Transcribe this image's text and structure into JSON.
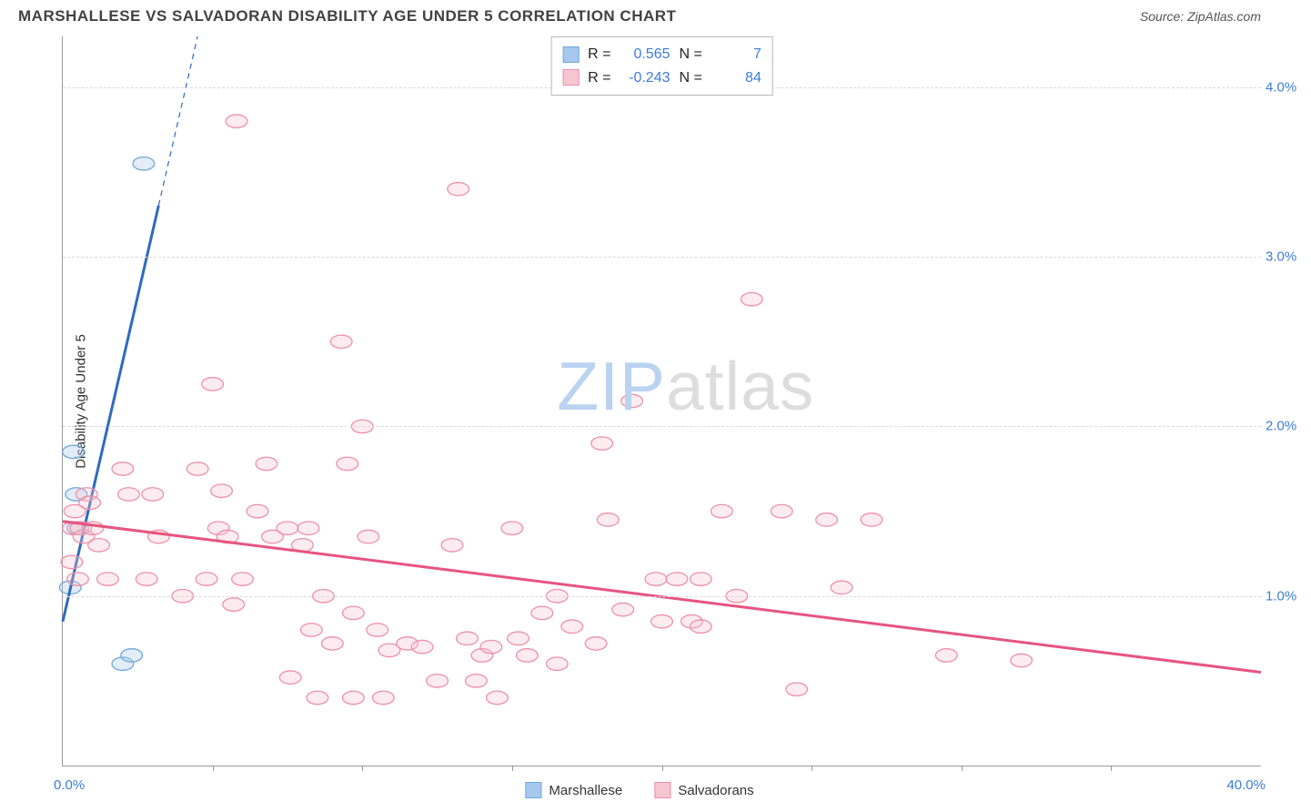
{
  "header": {
    "title": "MARSHALLESE VS SALVADORAN DISABILITY AGE UNDER 5 CORRELATION CHART",
    "source": "Source: ZipAtlas.com"
  },
  "y_axis_label": "Disability Age Under 5",
  "watermark": {
    "part1": "ZIP",
    "part2": "atlas"
  },
  "chart": {
    "type": "scatter",
    "background_color": "#ffffff",
    "grid_color": "#d8d8d8",
    "axis_color": "#999999",
    "tick_label_color": "#3b7dd8",
    "xlim": [
      0,
      40
    ],
    "ylim": [
      0,
      4.3
    ],
    "x_ticks_major": [
      0,
      40
    ],
    "x_tick_labels": [
      "0.0%",
      "40.0%"
    ],
    "x_ticks_minor": [
      5,
      10,
      15,
      20,
      25,
      30,
      35
    ],
    "y_gridlines": [
      1,
      2,
      3,
      4
    ],
    "y_tick_labels": [
      "1.0%",
      "2.0%",
      "3.0%",
      "4.0%"
    ],
    "marker_radius": 9,
    "marker_stroke_width": 1.3,
    "marker_fill_opacity": 0.32,
    "regression_line_width": 3,
    "series": [
      {
        "name": "Marshallese",
        "color_fill": "#a5c8ec",
        "color_stroke": "#6fa8dc",
        "line_color": "#2d6bbf",
        "legend_R": "0.565",
        "legend_N": "7",
        "points": [
          {
            "x": 0.25,
            "y": 1.05
          },
          {
            "x": 0.35,
            "y": 1.85
          },
          {
            "x": 0.45,
            "y": 1.6
          },
          {
            "x": 0.5,
            "y": 1.4
          },
          {
            "x": 2.0,
            "y": 0.6
          },
          {
            "x": 2.3,
            "y": 0.65
          },
          {
            "x": 2.7,
            "y": 3.55
          }
        ],
        "regression": {
          "x1": 0,
          "y1": 0.85,
          "x2": 4.5,
          "y2": 4.3,
          "dashed_from_x": 3.2
        }
      },
      {
        "name": "Salvadorans",
        "color_fill": "#f7c5d1",
        "color_stroke": "#ef8fa8",
        "line_color": "#e75480",
        "legend_R": "-0.243",
        "legend_N": "84",
        "points": [
          {
            "x": 0.3,
            "y": 1.2
          },
          {
            "x": 0.35,
            "y": 1.4
          },
          {
            "x": 0.4,
            "y": 1.5
          },
          {
            "x": 0.5,
            "y": 1.1
          },
          {
            "x": 0.6,
            "y": 1.4
          },
          {
            "x": 0.7,
            "y": 1.35
          },
          {
            "x": 0.8,
            "y": 1.6
          },
          {
            "x": 0.9,
            "y": 1.55
          },
          {
            "x": 1.0,
            "y": 1.4
          },
          {
            "x": 1.2,
            "y": 1.3
          },
          {
            "x": 1.5,
            "y": 1.1
          },
          {
            "x": 2.0,
            "y": 1.75
          },
          {
            "x": 2.2,
            "y": 1.6
          },
          {
            "x": 2.8,
            "y": 1.1
          },
          {
            "x": 3.0,
            "y": 1.6
          },
          {
            "x": 3.2,
            "y": 1.35
          },
          {
            "x": 4.0,
            "y": 1.0
          },
          {
            "x": 4.5,
            "y": 1.75
          },
          {
            "x": 4.8,
            "y": 1.1
          },
          {
            "x": 5.0,
            "y": 2.25
          },
          {
            "x": 5.2,
            "y": 1.4
          },
          {
            "x": 5.3,
            "y": 1.62
          },
          {
            "x": 5.5,
            "y": 1.35
          },
          {
            "x": 5.7,
            "y": 0.95
          },
          {
            "x": 5.8,
            "y": 3.8
          },
          {
            "x": 6.0,
            "y": 1.1
          },
          {
            "x": 6.5,
            "y": 1.5
          },
          {
            "x": 6.8,
            "y": 1.78
          },
          {
            "x": 7.0,
            "y": 1.35
          },
          {
            "x": 7.5,
            "y": 1.4
          },
          {
            "x": 7.6,
            "y": 0.52
          },
          {
            "x": 8.0,
            "y": 1.3
          },
          {
            "x": 8.2,
            "y": 1.4
          },
          {
            "x": 8.3,
            "y": 0.8
          },
          {
            "x": 8.5,
            "y": 0.4
          },
          {
            "x": 8.7,
            "y": 1.0
          },
          {
            "x": 9.0,
            "y": 0.72
          },
          {
            "x": 9.3,
            "y": 2.5
          },
          {
            "x": 9.5,
            "y": 1.78
          },
          {
            "x": 9.7,
            "y": 0.9
          },
          {
            "x": 9.7,
            "y": 0.4
          },
          {
            "x": 10.0,
            "y": 2.0
          },
          {
            "x": 10.2,
            "y": 1.35
          },
          {
            "x": 10.5,
            "y": 0.8
          },
          {
            "x": 10.7,
            "y": 0.4
          },
          {
            "x": 10.9,
            "y": 0.68
          },
          {
            "x": 11.5,
            "y": 0.72
          },
          {
            "x": 12.0,
            "y": 0.7
          },
          {
            "x": 12.5,
            "y": 0.5
          },
          {
            "x": 13.0,
            "y": 1.3
          },
          {
            "x": 13.2,
            "y": 3.4
          },
          {
            "x": 13.5,
            "y": 0.75
          },
          {
            "x": 13.8,
            "y": 0.5
          },
          {
            "x": 14.0,
            "y": 0.65
          },
          {
            "x": 14.3,
            "y": 0.7
          },
          {
            "x": 14.5,
            "y": 0.4
          },
          {
            "x": 15.0,
            "y": 1.4
          },
          {
            "x": 15.2,
            "y": 0.75
          },
          {
            "x": 15.5,
            "y": 0.65
          },
          {
            "x": 16.0,
            "y": 0.9
          },
          {
            "x": 16.5,
            "y": 1.0
          },
          {
            "x": 16.5,
            "y": 0.6
          },
          {
            "x": 17.0,
            "y": 0.82
          },
          {
            "x": 17.8,
            "y": 0.72
          },
          {
            "x": 18.0,
            "y": 1.9
          },
          {
            "x": 18.2,
            "y": 1.45
          },
          {
            "x": 18.7,
            "y": 0.92
          },
          {
            "x": 19.0,
            "y": 2.15
          },
          {
            "x": 19.8,
            "y": 1.1
          },
          {
            "x": 20.0,
            "y": 0.85
          },
          {
            "x": 20.5,
            "y": 1.1
          },
          {
            "x": 21.0,
            "y": 0.85
          },
          {
            "x": 21.3,
            "y": 0.82
          },
          {
            "x": 21.3,
            "y": 1.1
          },
          {
            "x": 22.0,
            "y": 1.5
          },
          {
            "x": 22.5,
            "y": 1.0
          },
          {
            "x": 23.0,
            "y": 2.75
          },
          {
            "x": 24.0,
            "y": 1.5
          },
          {
            "x": 24.5,
            "y": 0.45
          },
          {
            "x": 25.5,
            "y": 1.45
          },
          {
            "x": 26.0,
            "y": 1.05
          },
          {
            "x": 27.0,
            "y": 1.45
          },
          {
            "x": 29.5,
            "y": 0.65
          },
          {
            "x": 32.0,
            "y": 0.62
          }
        ],
        "regression": {
          "x1": 0,
          "y1": 1.44,
          "x2": 40,
          "y2": 0.55
        }
      }
    ]
  },
  "legend_labels": {
    "R": "R =",
    "N": "N ="
  }
}
